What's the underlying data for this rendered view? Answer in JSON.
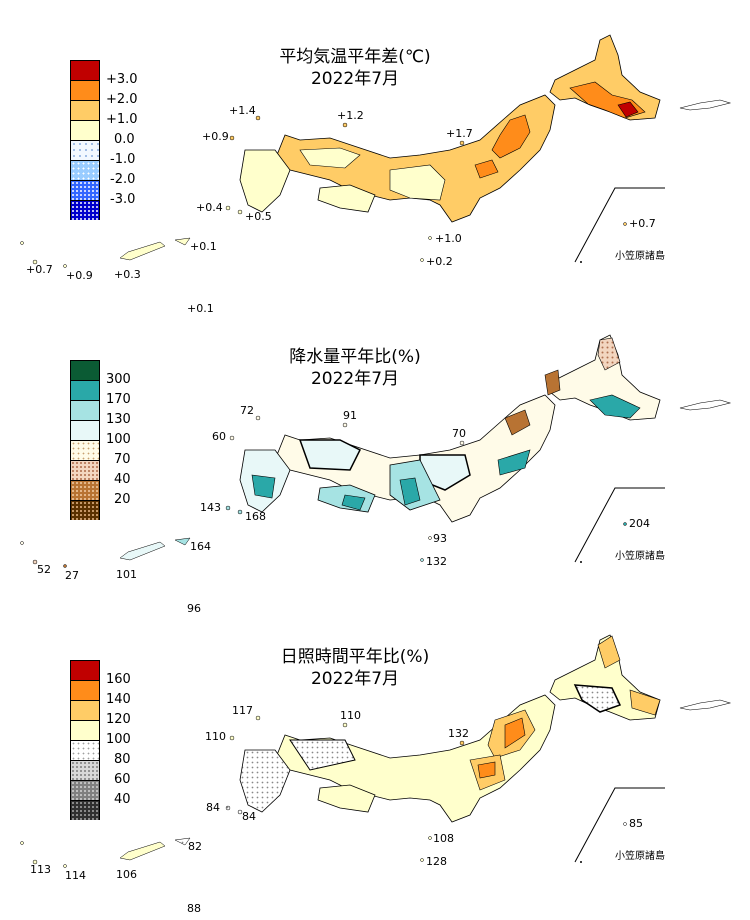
{
  "ogasawara_label": "小笠原諸島",
  "panels": [
    {
      "title_line1": "平均気温平年差(℃)",
      "title_line2": "2022年7月",
      "legend": [
        {
          "label": "+3.0",
          "color": "#c00000",
          "pattern": "solid"
        },
        {
          "label": "+2.0",
          "color": "#ff8c1a",
          "pattern": "solid"
        },
        {
          "label": "+1.0",
          "color": "#ffcc66",
          "pattern": "solid"
        },
        {
          "label": "0.0",
          "color": "#ffffcc",
          "pattern": "solid"
        },
        {
          "label": "-1.0",
          "color": "#e6f2ff",
          "pattern": "dots-light"
        },
        {
          "label": "-2.0",
          "color": "#99ccff",
          "pattern": "dots"
        },
        {
          "label": "-3.0",
          "color": "#3366ff",
          "pattern": "dots-dense"
        },
        {
          "label": "",
          "color": "#0000cc",
          "pattern": "dots-dense"
        }
      ],
      "values": {
        "rebun": "+1.4",
        "oki": "+1.2",
        "tsushima": "+0.9",
        "sado": "+1.7",
        "goto": "+0.4",
        "koshiki": "+0.5",
        "hachijo": "+1.0",
        "izu_south": "+0.2",
        "amami": "+0.1",
        "yonaguni": "+0.7",
        "ishigaki": "+0.9",
        "okinawa": "+0.3",
        "daito": "+0.1",
        "ogasawara": "+0.7"
      }
    },
    {
      "title_line1": "降水量平年比(%)",
      "title_line2": "2022年7月",
      "legend": [
        {
          "label": "300",
          "color": "#0b5b34",
          "pattern": "solid"
        },
        {
          "label": "170",
          "color": "#2aa8a8",
          "pattern": "solid"
        },
        {
          "label": "130",
          "color": "#a6e3e3",
          "pattern": "solid"
        },
        {
          "label": "100",
          "color": "#e8f8f8",
          "pattern": "solid"
        },
        {
          "label": "70",
          "color": "#fffbe8",
          "pattern": "dots-light"
        },
        {
          "label": "40",
          "color": "#f0d0b8",
          "pattern": "dots"
        },
        {
          "label": "20",
          "color": "#b87333",
          "pattern": "dots"
        },
        {
          "label": "",
          "color": "#5a3000",
          "pattern": "dots-dense"
        }
      ],
      "values": {
        "rebun": "72",
        "oki": "91",
        "tsushima": "60",
        "sado": "70",
        "goto": "143",
        "koshiki": "168",
        "hachijo": "93",
        "izu_south": "132",
        "amami": "164",
        "yonaguni": "52",
        "ishigaki": "27",
        "okinawa": "101",
        "daito": "96",
        "ogasawara": "204"
      }
    },
    {
      "title_line1": "日照時間平年比(%)",
      "title_line2": "2022年7月",
      "legend": [
        {
          "label": "160",
          "color": "#c00000",
          "pattern": "solid"
        },
        {
          "label": "140",
          "color": "#ff8c1a",
          "pattern": "solid"
        },
        {
          "label": "120",
          "color": "#ffcc66",
          "pattern": "solid"
        },
        {
          "label": "100",
          "color": "#ffffcc",
          "pattern": "solid"
        },
        {
          "label": "80",
          "color": "#ffffff",
          "pattern": "dots-light"
        },
        {
          "label": "60",
          "color": "#c8c8c8",
          "pattern": "dots"
        },
        {
          "label": "40",
          "color": "#808080",
          "pattern": "dots"
        },
        {
          "label": "",
          "color": "#303030",
          "pattern": "dots-dense"
        }
      ],
      "values": {
        "rebun": "117",
        "oki": "110",
        "tsushima": "110",
        "sado": "132",
        "goto": "84",
        "koshiki": "84",
        "hachijo": "108",
        "izu_south": "128",
        "amami": "82",
        "yonaguni": "113",
        "ishigaki": "114",
        "okinawa": "106",
        "daito": "88",
        "ogasawara": "85"
      }
    }
  ]
}
